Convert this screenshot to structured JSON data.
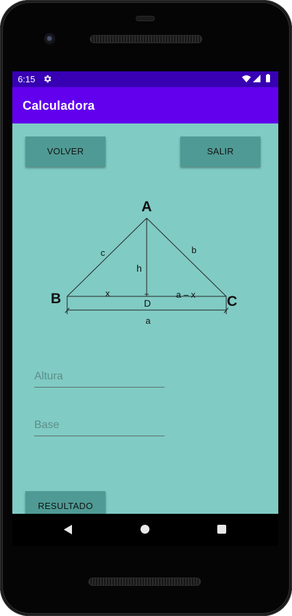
{
  "status": {
    "time": "6:15"
  },
  "app": {
    "title": "Calculadora"
  },
  "buttons": {
    "volver": "VOLVER",
    "salir": "SALIR",
    "resultado": "RESULTADO"
  },
  "diagram": {
    "vertex_a": "A",
    "vertex_b": "B",
    "vertex_c": "C",
    "point_d": "D",
    "side_a": "a",
    "side_b": "b",
    "side_c": "c",
    "height": "h",
    "segment_x": "x",
    "segment_ax": "a – x"
  },
  "inputs": {
    "altura": {
      "placeholder": "Altura",
      "value": ""
    },
    "base": {
      "placeholder": "Base",
      "value": ""
    }
  },
  "colors": {
    "status_bar": "#3700b3",
    "app_bar": "#6200ee",
    "background": "#80cbc4",
    "button": "#4f9a94"
  },
  "icons": {
    "status": [
      "gear-icon",
      "wifi-icon",
      "cell-signal-icon",
      "battery-icon"
    ],
    "nav": [
      "back-icon",
      "home-icon",
      "recents-icon"
    ]
  }
}
